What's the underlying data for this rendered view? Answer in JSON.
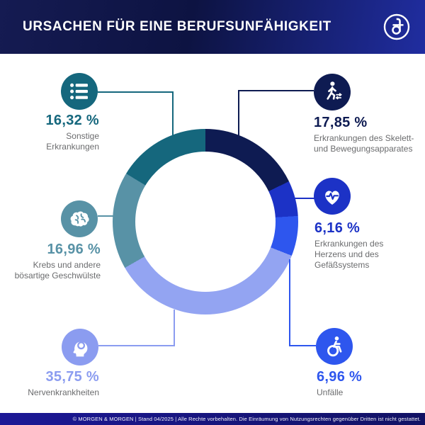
{
  "header": {
    "title": "Ursachen für eine Berufsunfähigkeit",
    "logo_name": "morgen-und-morgen-ampersand-logo"
  },
  "footer": {
    "text": "© MORGEN & MORGEN | Stand 04/2025 | Alle Rechte vorbehalten. Die Einräumung von Nutzungsrechten gegenüber Dritten ist nicht gestattet."
  },
  "chart_data": {
    "type": "pie",
    "variant": "donut",
    "title": "Ursachen für eine Berufsunfähigkeit",
    "unit": "%",
    "start_angle_deg": 0,
    "direction": "clockwise",
    "legend_position": "callouts-around-donut",
    "segments": [
      {
        "id": "skelett",
        "label": "Erkrankungen des Skelett- und Bewegungsapparates",
        "label_lines": [
          "Erkrankungen des Skelett-",
          "und Bewegungsapparates"
        ],
        "value": 17.85,
        "pct_label": "17,85 %",
        "color": "#0e1b52",
        "icon": "walking-person-icon"
      },
      {
        "id": "herz",
        "label": "Erkrankungen des Herzens und des Gefäßsystems",
        "label_lines": [
          "Erkrankungen des",
          "Herzens und des",
          "Gefäßsystems"
        ],
        "value": 6.16,
        "pct_label": "6,16 %",
        "color": "#1c32c6",
        "icon": "heart-pulse-icon"
      },
      {
        "id": "unfaelle",
        "label": "Unfälle",
        "label_lines": [
          "Unfälle"
        ],
        "value": 6.96,
        "pct_label": "6,96 %",
        "color": "#2e56ee",
        "icon": "wheelchair-user-icon"
      },
      {
        "id": "nerven",
        "label": "Nervenkrankheiten",
        "label_lines": [
          "Nervenkrankheiten"
        ],
        "value": 35.75,
        "pct_label": "35,75 %",
        "color": "#8b9cf0",
        "ring_color": "#93a4f2",
        "icon": "head-profile-icon"
      },
      {
        "id": "krebs",
        "label": "Krebs und andere bösartige Geschwülste",
        "label_lines": [
          "Krebs und andere",
          "bösartige Geschwülste"
        ],
        "value": 16.96,
        "pct_label": "16,96 %",
        "color": "#5892a6",
        "icon": "brain-icon"
      },
      {
        "id": "sonstige",
        "label": "Sonstige Erkrankungen",
        "label_lines": [
          "Sonstige",
          "Erkrankungen"
        ],
        "value": 16.32,
        "pct_label": "16,32 %",
        "color": "#15677d",
        "icon": "list-icon"
      }
    ]
  }
}
